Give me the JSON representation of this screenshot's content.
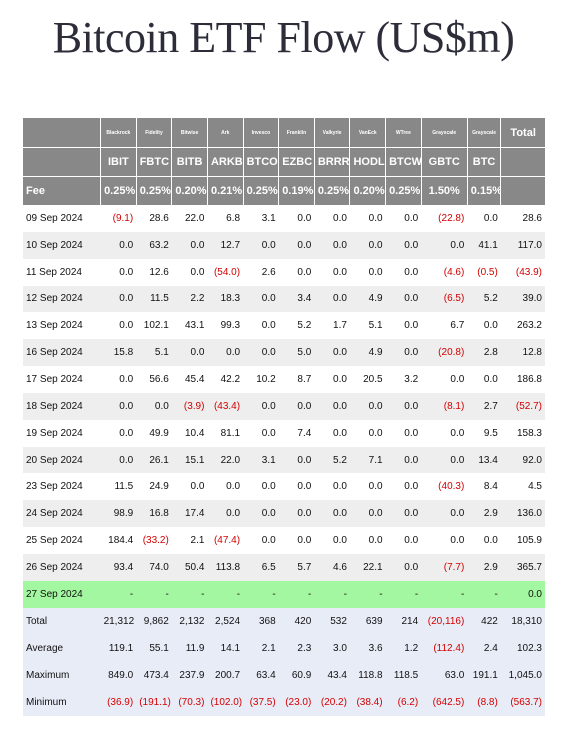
{
  "title": "Bitcoin ETF Flow (US$m)",
  "issuers": [
    "Blackrock",
    "Fidelity",
    "Bitwise",
    "Ark",
    "Invesco",
    "Franklin",
    "Valkyrie",
    "VanEck",
    "WTree",
    "Grayscale",
    "Grayscale"
  ],
  "tickers": [
    "IBIT",
    "FBTC",
    "BITB",
    "ARKB",
    "BTCO",
    "EZBC",
    "BRRR",
    "HODL",
    "BTCW",
    "GBTC",
    "BTC"
  ],
  "total_label": "Total",
  "fee_label": "Fee",
  "fees": [
    "0.25%",
    "0.25%",
    "0.20%",
    "0.21%",
    "0.25%",
    "0.19%",
    "0.25%",
    "0.20%",
    "0.25%",
    "1.50%",
    "0.15%"
  ],
  "rows": [
    {
      "date": "09 Sep 2024",
      "values": [
        "(9.1)",
        "28.6",
        "22.0",
        "6.8",
        "3.1",
        "0.0",
        "0.0",
        "0.0",
        "0.0",
        "(22.8)",
        "0.0"
      ],
      "total": "28.6"
    },
    {
      "date": "10 Sep 2024",
      "values": [
        "0.0",
        "63.2",
        "0.0",
        "12.7",
        "0.0",
        "0.0",
        "0.0",
        "0.0",
        "0.0",
        "0.0",
        "41.1"
      ],
      "total": "117.0"
    },
    {
      "date": "11 Sep 2024",
      "values": [
        "0.0",
        "12.6",
        "0.0",
        "(54.0)",
        "2.6",
        "0.0",
        "0.0",
        "0.0",
        "0.0",
        "(4.6)",
        "(0.5)"
      ],
      "total": "(43.9)"
    },
    {
      "date": "12 Sep 2024",
      "values": [
        "0.0",
        "11.5",
        "2.2",
        "18.3",
        "0.0",
        "3.4",
        "0.0",
        "4.9",
        "0.0",
        "(6.5)",
        "5.2"
      ],
      "total": "39.0"
    },
    {
      "date": "13 Sep 2024",
      "values": [
        "0.0",
        "102.1",
        "43.1",
        "99.3",
        "0.0",
        "5.2",
        "1.7",
        "5.1",
        "0.0",
        "6.7",
        "0.0"
      ],
      "total": "263.2"
    },
    {
      "date": "16 Sep 2024",
      "values": [
        "15.8",
        "5.1",
        "0.0",
        "0.0",
        "0.0",
        "5.0",
        "0.0",
        "4.9",
        "0.0",
        "(20.8)",
        "2.8"
      ],
      "total": "12.8"
    },
    {
      "date": "17 Sep 2024",
      "values": [
        "0.0",
        "56.6",
        "45.4",
        "42.2",
        "10.2",
        "8.7",
        "0.0",
        "20.5",
        "3.2",
        "0.0",
        "0.0"
      ],
      "total": "186.8"
    },
    {
      "date": "18 Sep 2024",
      "values": [
        "0.0",
        "0.0",
        "(3.9)",
        "(43.4)",
        "0.0",
        "0.0",
        "0.0",
        "0.0",
        "0.0",
        "(8.1)",
        "2.7"
      ],
      "total": "(52.7)"
    },
    {
      "date": "19 Sep 2024",
      "values": [
        "0.0",
        "49.9",
        "10.4",
        "81.1",
        "0.0",
        "7.4",
        "0.0",
        "0.0",
        "0.0",
        "0.0",
        "9.5"
      ],
      "total": "158.3"
    },
    {
      "date": "20 Sep 2024",
      "values": [
        "0.0",
        "26.1",
        "15.1",
        "22.0",
        "3.1",
        "0.0",
        "5.2",
        "7.1",
        "0.0",
        "0.0",
        "13.4"
      ],
      "total": "92.0"
    },
    {
      "date": "23 Sep 2024",
      "values": [
        "11.5",
        "24.9",
        "0.0",
        "0.0",
        "0.0",
        "0.0",
        "0.0",
        "0.0",
        "0.0",
        "(40.3)",
        "8.4"
      ],
      "total": "4.5"
    },
    {
      "date": "24 Sep 2024",
      "values": [
        "98.9",
        "16.8",
        "17.4",
        "0.0",
        "0.0",
        "0.0",
        "0.0",
        "0.0",
        "0.0",
        "0.0",
        "2.9"
      ],
      "total": "136.0"
    },
    {
      "date": "25 Sep 2024",
      "values": [
        "184.4",
        "(33.2)",
        "2.1",
        "(47.4)",
        "0.0",
        "0.0",
        "0.0",
        "0.0",
        "0.0",
        "0.0",
        "0.0"
      ],
      "total": "105.9"
    },
    {
      "date": "26 Sep 2024",
      "values": [
        "93.4",
        "74.0",
        "50.4",
        "113.8",
        "6.5",
        "5.7",
        "4.6",
        "22.1",
        "0.0",
        "(7.7)",
        "2.9"
      ],
      "total": "365.7"
    },
    {
      "date": "27 Sep 2024",
      "values": [
        "-",
        "-",
        "-",
        "-",
        "-",
        "-",
        "-",
        "-",
        "-",
        "-",
        "-"
      ],
      "total": "0.0",
      "highlight": true
    }
  ],
  "stats": [
    {
      "label": "Total",
      "values": [
        "21,312",
        "9,862",
        "2,132",
        "2,524",
        "368",
        "420",
        "532",
        "639",
        "214",
        "(20,116)",
        "422"
      ],
      "total": "18,310"
    },
    {
      "label": "Average",
      "values": [
        "119.1",
        "55.1",
        "11.9",
        "14.1",
        "2.1",
        "2.3",
        "3.0",
        "3.6",
        "1.2",
        "(112.4)",
        "2.4"
      ],
      "total": "102.3"
    },
    {
      "label": "Maximum",
      "values": [
        "849.0",
        "473.4",
        "237.9",
        "200.7",
        "63.4",
        "60.9",
        "43.4",
        "118.8",
        "118.5",
        "63.0",
        "191.1"
      ],
      "total": "1,045.0"
    },
    {
      "label": "Minimum",
      "values": [
        "(36.9)",
        "(191.1)",
        "(70.3)",
        "(102.0)",
        "(37.5)",
        "(23.0)",
        "(20.2)",
        "(38.4)",
        "(6.2)",
        "(642.5)",
        "(8.8)"
      ],
      "total": "(563.7)"
    }
  ],
  "colors": {
    "header_bg": "#888888",
    "negative": "#d40000",
    "highlight_row": "#a3f7a0",
    "stats_bg": "#e8ecf7",
    "alt_row": "#eeeeee"
  }
}
